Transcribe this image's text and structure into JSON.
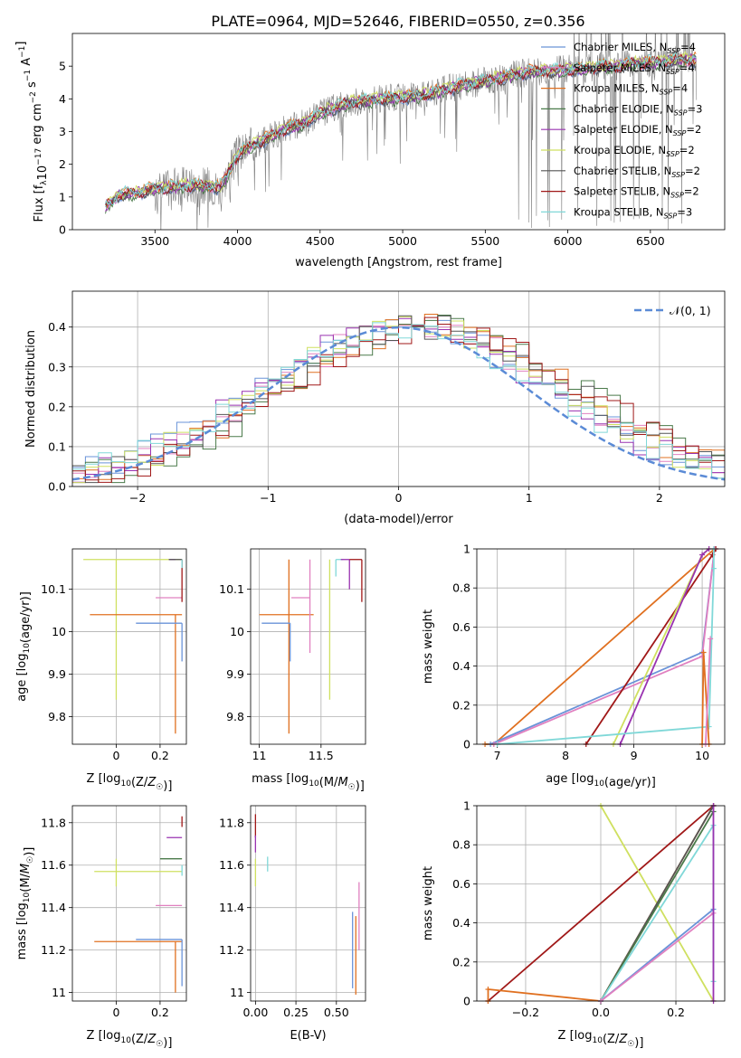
{
  "title": "PLATE=0964, MJD=52646, FIBERID=0550, z=0.356",
  "colors": {
    "chabrier_miles": "#6a93d8",
    "salpeter_miles": "#e080c0",
    "kroupa_miles": "#e07020",
    "chabrier_elodie": "#4a7a4a",
    "salpeter_elodie": "#9932b0",
    "kroupa_elodie": "#cfe060",
    "chabrier_stelib": "#555555",
    "salpeter_stelib": "#a01818",
    "kroupa_stelib": "#80d8d8",
    "data": "#808080",
    "normal": "#5b8bd6"
  },
  "chart_data": [
    {
      "id": "spectrum",
      "type": "line",
      "xlabel": "wavelength [Angstrom, rest frame]",
      "ylabel": "Flux [f_λ 10^-17 erg cm^-2 s^-1 A^-1]",
      "xlim": [
        3000,
        6950
      ],
      "ylim": [
        0,
        6
      ],
      "xticks": [
        3500,
        4000,
        4500,
        5000,
        5500,
        6000,
        6500
      ],
      "yticks": [
        0,
        1,
        2,
        3,
        4,
        5
      ],
      "continuum": {
        "x": [
          3200,
          3280,
          3400,
          3500,
          3600,
          3700,
          3800,
          3900,
          3950,
          4000,
          4100,
          4200,
          4300,
          4400,
          4500,
          4600,
          4700,
          4800,
          4900,
          5000,
          5100,
          5200,
          5300,
          5400,
          5500,
          5600,
          5700,
          5800,
          5900,
          6000,
          6100,
          6200,
          6300,
          6400,
          6500,
          6600,
          6700,
          6780
        ],
        "y": [
          0.7,
          1.05,
          1.15,
          1.25,
          1.3,
          1.35,
          1.35,
          1.3,
          1.8,
          2.3,
          2.6,
          2.85,
          3.1,
          3.25,
          3.55,
          3.75,
          3.9,
          3.95,
          4.0,
          4.05,
          4.1,
          4.2,
          4.35,
          4.45,
          4.55,
          4.65,
          4.75,
          4.85,
          4.85,
          4.9,
          4.9,
          5.0,
          5.0,
          5.1,
          5.1,
          5.15,
          5.2,
          5.2
        ]
      },
      "legend": [
        {
          "key": "chabrier_miles",
          "label": "Chabrier MILES, N",
          "sub": "SSP",
          "tail": "=4"
        },
        {
          "key": "salpeter_miles",
          "label": "Salpeter MILES, N",
          "sub": "SSP",
          "tail": "=4"
        },
        {
          "key": "kroupa_miles",
          "label": "Kroupa MILES, N",
          "sub": "SSP",
          "tail": "=4"
        },
        {
          "key": "chabrier_elodie",
          "label": "Chabrier ELODIE, N",
          "sub": "SSP",
          "tail": "=3"
        },
        {
          "key": "salpeter_elodie",
          "label": "Salpeter ELODIE, N",
          "sub": "SSP",
          "tail": "=2"
        },
        {
          "key": "kroupa_elodie",
          "label": "Kroupa ELODIE, N",
          "sub": "SSP",
          "tail": "=2"
        },
        {
          "key": "chabrier_stelib",
          "label": "Chabrier STELIB, N",
          "sub": "SSP",
          "tail": "=2"
        },
        {
          "key": "salpeter_stelib",
          "label": "Salpeter STELIB, N",
          "sub": "SSP",
          "tail": "=2"
        },
        {
          "key": "kroupa_stelib",
          "label": "Kroupa STELIB, N",
          "sub": "SSP",
          "tail": "=3"
        }
      ],
      "legend_position": "top-right"
    },
    {
      "id": "residuals",
      "type": "line",
      "xlabel": "(data-model)/error",
      "ylabel": "Normed distribution",
      "xlim": [
        -2.5,
        2.5
      ],
      "ylim": [
        0,
        0.49
      ],
      "xticks": [
        -2,
        -1,
        0,
        1,
        2
      ],
      "xtick_labels": [
        "−2",
        "−1",
        "0",
        "1",
        "2"
      ],
      "yticks": [
        0.0,
        0.1,
        0.2,
        0.3,
        0.4
      ],
      "ytick_labels": [
        "0.0",
        "0.1",
        "0.2",
        "0.3",
        "0.4"
      ],
      "normal_label": "𝒩(0, 1)",
      "legend_position": "top-right"
    },
    {
      "id": "age_vs_Z",
      "type": "scatter",
      "xlabel": "Z [log10(Z/Z☉)]",
      "ylabel": "age [log10(age/yr)]",
      "xlim": [
        -0.2,
        0.32
      ],
      "ylim": [
        9.735,
        10.195
      ],
      "xticks": [
        0.0,
        0.2
      ],
      "yticks": [
        9.8,
        9.9,
        10.0,
        10.1
      ],
      "points": [
        {
          "key": "kroupa_elodie",
          "x": 0.0,
          "xerr": [
            0.15,
            0.3
          ],
          "y": 10.17,
          "yerr": [
            0.33,
            0.0
          ]
        },
        {
          "key": "kroupa_miles",
          "x": 0.0,
          "xerr": [
            0.12,
            0.3
          ],
          "y": 10.04,
          "yerr": [
            0.0,
            0.0
          ]
        },
        {
          "key": "kroupa_miles",
          "x": 0.27,
          "xerr": [
            0.0,
            0.0
          ],
          "y": 10.04,
          "yerr": [
            0.28,
            0.0
          ]
        },
        {
          "key": "chabrier_miles",
          "x": 0.19,
          "xerr": [
            0.1,
            0.11
          ],
          "y": 10.02,
          "yerr": [
            0.0,
            0.0
          ]
        },
        {
          "key": "salpeter_miles",
          "x": 0.25,
          "xerr": [
            0.07,
            0.05
          ],
          "y": 10.08,
          "yerr": [
            0.0,
            0.0
          ]
        },
        {
          "key": "chabrier_miles",
          "x": 0.3,
          "xerr": [
            0.0,
            0.0
          ],
          "y": 10.02,
          "yerr": [
            0.09,
            0.0
          ]
        },
        {
          "key": "salpeter_stelib",
          "x": 0.3,
          "xerr": [
            0.0,
            0.0
          ],
          "y": 10.17,
          "yerr": [
            0.1,
            0.0
          ]
        },
        {
          "key": "salpeter_elodie",
          "x": 0.27,
          "xerr": [
            0.03,
            0.0
          ],
          "y": 10.17,
          "yerr": [
            0.0,
            0.0
          ]
        },
        {
          "key": "chabrier_stelib",
          "x": 0.3,
          "xerr": [
            0.06,
            0.0
          ],
          "y": 10.17,
          "yerr": [
            0.0,
            0.0
          ]
        },
        {
          "key": "kroupa_stelib",
          "x": 0.3,
          "xerr": [
            0.0,
            0.0
          ],
          "y": 10.17,
          "yerr": [
            0.02,
            0.0
          ]
        }
      ]
    },
    {
      "id": "age_vs_mass",
      "type": "scatter",
      "xlabel": "mass [log10(M/M☉)]",
      "ylabel": "",
      "xlim": [
        10.93,
        11.86
      ],
      "ylim": [
        9.735,
        10.195
      ],
      "xticks": [
        11.0,
        11.5
      ],
      "yticks": [
        9.8,
        9.9,
        10.0,
        10.1
      ],
      "points": [
        {
          "key": "kroupa_miles",
          "x": 11.24,
          "xerr": [
            0.24,
            0.2
          ],
          "y": 10.04,
          "yerr": [
            0.28,
            0.13
          ]
        },
        {
          "key": "chabrier_miles",
          "x": 11.25,
          "xerr": [
            0.23,
            0.0
          ],
          "y": 10.02,
          "yerr": [
            0.09,
            0.0
          ]
        },
        {
          "key": "salpeter_miles",
          "x": 11.41,
          "xerr": [
            0.15,
            0.0
          ],
          "y": 10.08,
          "yerr": [
            0.13,
            0.09
          ]
        },
        {
          "key": "kroupa_elodie",
          "x": 11.57,
          "xerr": [
            0.0,
            0.0
          ],
          "y": 10.17,
          "yerr": [
            0.33,
            0.0
          ]
        },
        {
          "key": "chabrier_elodie",
          "x": 11.63,
          "xerr": [
            0.0,
            0.0
          ],
          "y": 10.17,
          "yerr": [
            0.0,
            0.0
          ]
        },
        {
          "key": "kroupa_stelib",
          "x": 11.62,
          "xerr": [
            0.0,
            0.06
          ],
          "y": 10.17,
          "yerr": [
            0.04,
            0.0
          ]
        },
        {
          "key": "salpeter_elodie",
          "x": 11.73,
          "xerr": [
            0.07,
            0.0
          ],
          "y": 10.17,
          "yerr": [
            0.07,
            0.0
          ]
        },
        {
          "key": "salpeter_stelib",
          "x": 11.83,
          "xerr": [
            0.1,
            0.0
          ],
          "y": 10.17,
          "yerr": [
            0.1,
            0.0
          ]
        }
      ]
    },
    {
      "id": "massweight_vs_age",
      "type": "line",
      "xlabel": "age [log10(age/yr)]",
      "ylabel": "mass weight",
      "xlim": [
        6.7,
        10.33
      ],
      "ylim": [
        0,
        1
      ],
      "xticks": [
        7,
        8,
        9,
        10
      ],
      "yticks": [
        0.0,
        0.2,
        0.4,
        0.6,
        0.8,
        1.0
      ],
      "series": [
        {
          "key": "kroupa_miles",
          "x": [
            6.82,
            6.95,
            10.18
          ],
          "y": [
            0.0,
            0.0,
            1.0
          ]
        },
        {
          "key": "chabrier_miles",
          "x": [
            6.9,
            10.0,
            10.18
          ],
          "y": [
            0.0,
            0.47,
            1.0
          ]
        },
        {
          "key": "salpeter_miles",
          "x": [
            6.95,
            10.0,
            10.18
          ],
          "y": [
            0.0,
            0.45,
            1.0
          ]
        },
        {
          "key": "salpeter_stelib",
          "x": [
            8.3,
            10.15,
            10.2
          ],
          "y": [
            0.0,
            0.97,
            1.0
          ]
        },
        {
          "key": "kroupa_elodie",
          "x": [
            8.7,
            10.0,
            10.1
          ],
          "y": [
            0.0,
            0.97,
            1.0
          ]
        },
        {
          "key": "salpeter_elodie",
          "x": [
            8.8,
            10.0,
            10.1
          ],
          "y": [
            0.0,
            0.97,
            1.0
          ]
        },
        {
          "key": "kroupa_stelib",
          "x": [
            7.0,
            10.1,
            10.17,
            10.17
          ],
          "y": [
            0.0,
            0.09,
            0.9,
            1.0
          ]
        },
        {
          "key": "kroupa_miles",
          "x": [
            10.0,
            10.02,
            10.1
          ],
          "y": [
            0.0,
            0.47,
            0.0
          ]
        },
        {
          "key": "salpeter_miles",
          "x": [
            10.05,
            10.12
          ],
          "y": [
            0.0,
            0.54
          ]
        }
      ]
    },
    {
      "id": "mass_vs_Z",
      "type": "scatter",
      "xlabel": "Z [log10(Z/Z☉)]",
      "ylabel": "mass [log10(M/M☉)]",
      "xlim": [
        -0.2,
        0.32
      ],
      "ylim": [
        10.96,
        11.88
      ],
      "xticks": [
        0.0,
        0.2
      ],
      "yticks": [
        11.0,
        11.2,
        11.4,
        11.6,
        11.8
      ],
      "points": [
        {
          "key": "kroupa_elodie",
          "x": 0.0,
          "xerr": [
            0.1,
            0.3
          ],
          "y": 11.57,
          "yerr": [
            0.07,
            0.06
          ]
        },
        {
          "key": "kroupa_miles",
          "x": 0.0,
          "xerr": [
            0.1,
            0.3
          ],
          "y": 11.24,
          "yerr": [
            0.0,
            0.0
          ]
        },
        {
          "key": "kroupa_miles",
          "x": 0.27,
          "xerr": [
            0.0,
            0.0
          ],
          "y": 11.24,
          "yerr": [
            0.24,
            0.0
          ]
        },
        {
          "key": "chabrier_miles",
          "x": 0.19,
          "xerr": [
            0.1,
            0.11
          ],
          "y": 11.25,
          "yerr": [
            0.0,
            0.0
          ]
        },
        {
          "key": "salpeter_miles",
          "x": 0.25,
          "xerr": [
            0.07,
            0.05
          ],
          "y": 11.41,
          "yerr": [
            0.0,
            0.0
          ]
        },
        {
          "key": "chabrier_elodie",
          "x": 0.25,
          "xerr": [
            0.05,
            0.05
          ],
          "y": 11.63,
          "yerr": [
            0.0,
            0.0
          ]
        },
        {
          "key": "salpeter_elodie",
          "x": 0.26,
          "xerr": [
            0.03,
            0.04
          ],
          "y": 11.73,
          "yerr": [
            0.0,
            0.0
          ]
        },
        {
          "key": "salpeter_stelib",
          "x": 0.3,
          "xerr": [
            0.0,
            0.0
          ],
          "y": 11.83,
          "yerr": [
            0.05,
            0.0
          ]
        },
        {
          "key": "chabrier_miles",
          "x": 0.3,
          "xerr": [
            0.0,
            0.0
          ],
          "y": 11.25,
          "yerr": [
            0.22,
            0.0
          ]
        },
        {
          "key": "kroupa_stelib",
          "x": 0.3,
          "xerr": [
            0.0,
            0.0
          ],
          "y": 11.6,
          "yerr": [
            0.05,
            0.0
          ]
        }
      ]
    },
    {
      "id": "mass_vs_ebv",
      "type": "scatter",
      "xlabel": "E(B-V)",
      "ylabel": "",
      "xlim": [
        -0.03,
        0.68
      ],
      "ylim": [
        10.96,
        11.88
      ],
      "xticks": [
        0.0,
        0.25,
        0.5
      ],
      "xtick_labels": [
        "0.00",
        "0.25",
        "0.50"
      ],
      "yticks": [
        11.0,
        11.2,
        11.4,
        11.6,
        11.8
      ],
      "points": [
        {
          "key": "salpeter_stelib",
          "x": 0.0,
          "y": 11.78,
          "yerr": [
            0.05,
            0.06
          ]
        },
        {
          "key": "salpeter_elodie",
          "x": 0.0,
          "y": 11.7,
          "yerr": [
            0.04,
            0.04
          ]
        },
        {
          "key": "kroupa_elodie",
          "x": 0.0,
          "y": 11.57,
          "yerr": [
            0.07,
            0.06
          ]
        },
        {
          "key": "kroupa_stelib",
          "x": 0.075,
          "y": 11.6,
          "yerr": [
            0.03,
            0.04
          ]
        },
        {
          "key": "chabrier_miles",
          "x": 0.6,
          "y": 11.2,
          "yerr": [
            0.18,
            0.18
          ]
        },
        {
          "key": "kroupa_miles",
          "x": 0.62,
          "y": 11.16,
          "yerr": [
            0.17,
            0.2
          ]
        },
        {
          "key": "salpeter_miles",
          "x": 0.64,
          "y": 11.36,
          "yerr": [
            0.16,
            0.16
          ]
        }
      ]
    },
    {
      "id": "massweight_vs_Z",
      "type": "line",
      "xlabel": "Z [log10(Z/Z☉)]",
      "ylabel": "mass weight",
      "xlim": [
        -0.33,
        0.33
      ],
      "ylim": [
        0,
        1
      ],
      "xticks": [
        -0.2,
        0.0,
        0.2
      ],
      "xtick_labels": [
        "−0.2",
        "0.0",
        "0.2"
      ],
      "yticks": [
        0.0,
        0.2,
        0.4,
        0.6,
        0.8,
        1.0
      ],
      "series": [
        {
          "key": "salpeter_stelib",
          "x": [
            -0.3,
            0.3
          ],
          "y": [
            0.0,
            1.0
          ]
        },
        {
          "key": "kroupa_elodie",
          "x": [
            0.0,
            0.3
          ],
          "y": [
            1.0,
            0.0
          ]
        },
        {
          "key": "kroupa_miles",
          "x": [
            -0.3,
            -0.3,
            0.0,
            0.3
          ],
          "y": [
            0.0,
            0.06,
            0.0,
            1.0
          ]
        },
        {
          "key": "chabrier_stelib",
          "x": [
            0.0,
            0.3
          ],
          "y": [
            0.0,
            1.0
          ]
        },
        {
          "key": "chabrier_elodie",
          "x": [
            0.0,
            0.3
          ],
          "y": [
            0.0,
            0.97
          ]
        },
        {
          "key": "kroupa_stelib",
          "x": [
            0.0,
            0.3,
            0.3
          ],
          "y": [
            0.0,
            0.9,
            0.1
          ]
        },
        {
          "key": "chabrier_miles",
          "x": [
            0.0,
            0.3
          ],
          "y": [
            0.0,
            0.47
          ]
        },
        {
          "key": "salpeter_miles",
          "x": [
            0.0,
            0.3
          ],
          "y": [
            0.0,
            0.45
          ]
        },
        {
          "key": "salpeter_elodie",
          "x": [
            0.3,
            0.3
          ],
          "y": [
            0.0,
            1.0
          ]
        }
      ]
    }
  ]
}
